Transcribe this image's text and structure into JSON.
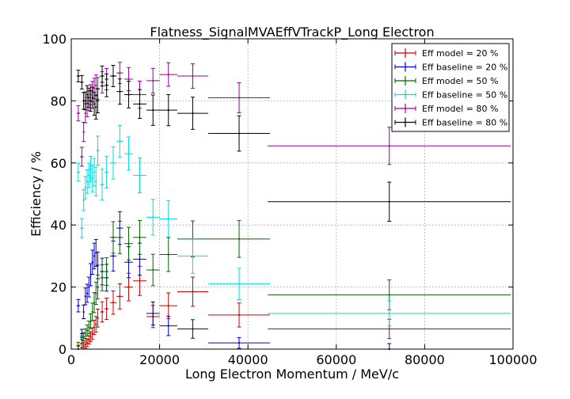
{
  "chart_data": {
    "type": "scatter",
    "title": "Flatness_SignalMVAEffVTrackP_Long Electron",
    "xlabel": "Long Electron Momentum / MeV/c",
    "ylabel": "Efficiency / %",
    "xlim": [
      0,
      100000
    ],
    "ylim": [
      0,
      100
    ],
    "x_ticks": [
      {
        "value": 0,
        "label": "0"
      },
      {
        "value": 20000,
        "label": "20000"
      },
      {
        "value": 40000,
        "label": "40000"
      },
      {
        "value": 60000,
        "label": "60000"
      },
      {
        "value": 80000,
        "label": "80000"
      },
      {
        "value": 100000,
        "label": "100000"
      }
    ],
    "y_ticks": [
      {
        "value": 0,
        "label": "0"
      },
      {
        "value": 20,
        "label": "20"
      },
      {
        "value": 40,
        "label": "40"
      },
      {
        "value": 60,
        "label": "60"
      },
      {
        "value": 80,
        "label": "80"
      },
      {
        "value": 100,
        "label": "100"
      }
    ],
    "grid": true,
    "legend_position": "top-right",
    "x_bins": [
      [
        1600,
        400
      ],
      [
        2400,
        400
      ],
      [
        2800,
        200
      ],
      [
        3200,
        200
      ],
      [
        3600,
        200
      ],
      [
        4000,
        200
      ],
      [
        4400,
        200
      ],
      [
        4800,
        200
      ],
      [
        5200,
        200
      ],
      [
        5600,
        200
      ],
      [
        6000,
        300
      ],
      [
        7000,
        500
      ],
      [
        8000,
        500
      ],
      [
        9500,
        750
      ],
      [
        11000,
        750
      ],
      [
        13000,
        1000
      ],
      [
        15500,
        1500
      ],
      [
        18500,
        1500
      ],
      [
        22000,
        2000
      ],
      [
        27500,
        3500
      ],
      [
        38000,
        7000
      ],
      [
        72000,
        27500
      ]
    ],
    "series": [
      {
        "name": "Eff model = 20 %",
        "color": "#cc0000",
        "values": [
          0,
          0.5,
          1,
          1.5,
          2,
          3,
          4,
          5,
          7,
          8,
          10,
          12,
          13,
          15,
          17,
          20,
          22,
          10.5,
          14,
          18.5,
          11,
          6.5
        ]
      },
      {
        "name": "Eff baseline = 20 %",
        "color": "#0000cc",
        "values": [
          14,
          5,
          12,
          17,
          18,
          20,
          24,
          28,
          30,
          31,
          27,
          25,
          23,
          30,
          39,
          28,
          29,
          11.5,
          7.5,
          6.5,
          2,
          0
        ]
      },
      {
        "name": "Eff model = 50 %",
        "color": "#006600",
        "values": [
          1,
          3,
          4,
          5,
          6,
          7,
          9,
          12,
          15,
          18,
          20,
          23,
          25,
          36,
          36,
          34,
          36,
          25.5,
          30.5,
          35.5,
          35.5,
          17.5
        ]
      },
      {
        "name": "Eff baseline = 50 %",
        "color": "#00dddd",
        "values": [
          57,
          39,
          48,
          52,
          54,
          56,
          58,
          55,
          57,
          54,
          64,
          53,
          57,
          60,
          67,
          63,
          56,
          42.5,
          42,
          30,
          21,
          11.5
        ]
      },
      {
        "name": "Eff model = 80 %",
        "color": "#990099",
        "values": [
          76,
          62,
          70,
          76,
          78,
          80,
          82,
          83,
          84,
          85,
          84,
          86,
          87,
          88,
          89,
          87,
          82,
          86.5,
          88.5,
          88,
          81,
          65.5
        ]
      },
      {
        "name": "Eff baseline = 80 %",
        "color": "#000000",
        "values": [
          88,
          86,
          80,
          80,
          82,
          81,
          80,
          81,
          79,
          78,
          80,
          88,
          85,
          88,
          83,
          82,
          79,
          77,
          77,
          76,
          69.5,
          47.5
        ]
      }
    ]
  }
}
